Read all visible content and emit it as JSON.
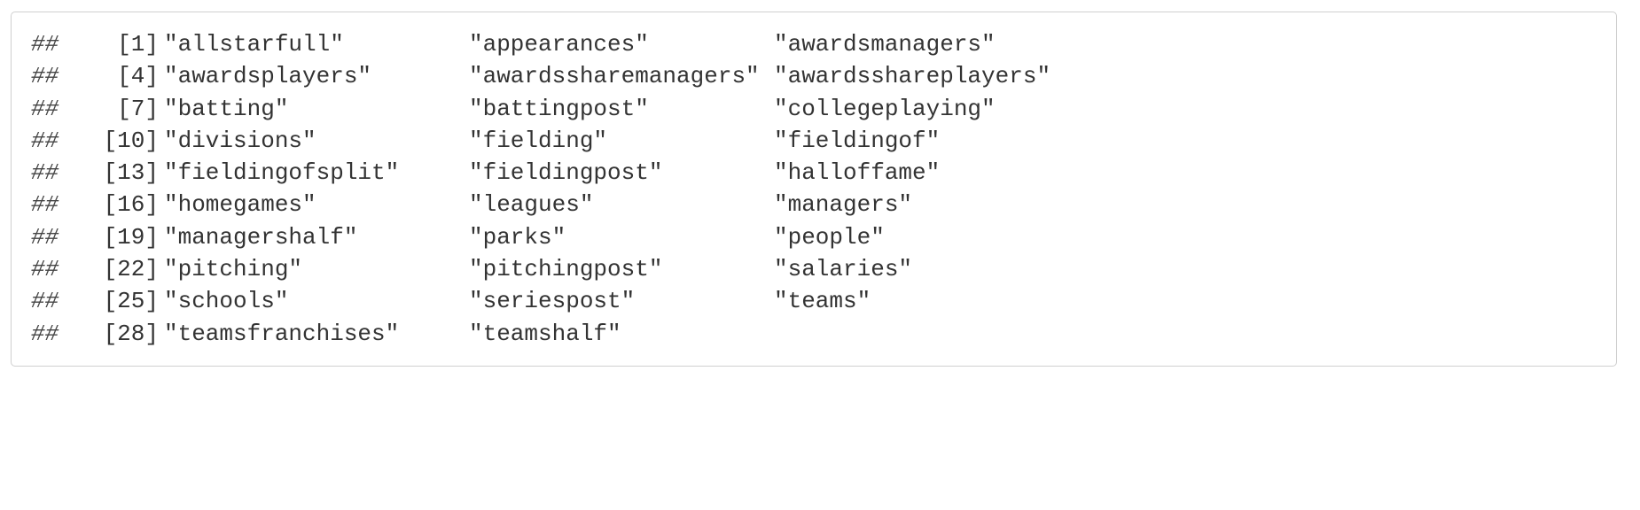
{
  "output": {
    "prefix": "##",
    "rows": [
      {
        "index": "[1]",
        "values": [
          "\"allstarfull\"",
          "\"appearances\"",
          "\"awardsmanagers\""
        ]
      },
      {
        "index": "[4]",
        "values": [
          "\"awardsplayers\"",
          "\"awardssharemanagers\"",
          "\"awardsshareplayers\""
        ]
      },
      {
        "index": "[7]",
        "values": [
          "\"batting\"",
          "\"battingpost\"",
          "\"collegeplaying\""
        ]
      },
      {
        "index": "[10]",
        "values": [
          "\"divisions\"",
          "\"fielding\"",
          "\"fieldingof\""
        ]
      },
      {
        "index": "[13]",
        "values": [
          "\"fieldingofsplit\"",
          "\"fieldingpost\"",
          "\"halloffame\""
        ]
      },
      {
        "index": "[16]",
        "values": [
          "\"homegames\"",
          "\"leagues\"",
          "\"managers\""
        ]
      },
      {
        "index": "[19]",
        "values": [
          "\"managershalf\"",
          "\"parks\"",
          "\"people\""
        ]
      },
      {
        "index": "[22]",
        "values": [
          "\"pitching\"",
          "\"pitchingpost\"",
          "\"salaries\""
        ]
      },
      {
        "index": "[25]",
        "values": [
          "\"schools\"",
          "\"seriespost\"",
          "\"teams\""
        ]
      },
      {
        "index": "[28]",
        "values": [
          "\"teamsfranchises\"",
          "\"teamshalf\""
        ]
      }
    ]
  }
}
